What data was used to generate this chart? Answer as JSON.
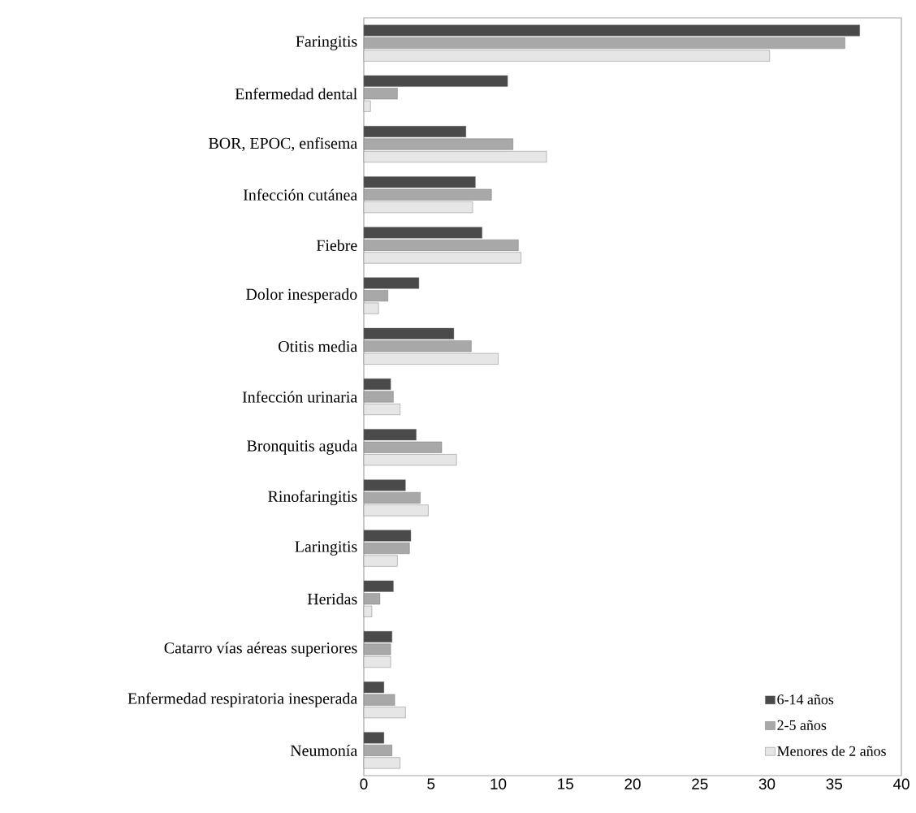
{
  "chart_data": {
    "type": "bar",
    "orientation": "horizontal",
    "categories": [
      "Faringitis",
      "Enfermedad dental",
      "BOR, EPOC, enfisema",
      "Infección cutánea",
      "Fiebre",
      "Dolor inesperado",
      "Otitis media",
      "Infección urinaria",
      "Bronquitis aguda",
      "Rinofaringitis",
      "Laringitis",
      "Heridas",
      "Catarro vías aéreas superiores",
      "Enfermedad respiratoria inesperada",
      "Neumonía"
    ],
    "series": [
      {
        "name": "6-14 años",
        "color": "#4a4a4a",
        "values": [
          36.9,
          10.7,
          7.6,
          8.3,
          8.8,
          4.1,
          6.7,
          2.0,
          3.9,
          3.1,
          3.5,
          2.2,
          2.1,
          1.5,
          1.5
        ]
      },
      {
        "name": "2-5 años",
        "color": "#a8a8a8",
        "values": [
          35.8,
          2.5,
          11.1,
          9.5,
          11.5,
          1.8,
          8.0,
          2.2,
          5.8,
          4.2,
          3.4,
          1.2,
          2.0,
          2.3,
          2.1
        ]
      },
      {
        "name": "Menores de 2 años",
        "color": "#e6e6e6",
        "values": [
          30.2,
          0.5,
          13.6,
          8.1,
          11.7,
          1.1,
          10.0,
          2.7,
          6.9,
          4.8,
          2.5,
          0.6,
          2.0,
          3.1,
          2.7
        ]
      }
    ],
    "xlim": [
      0,
      40
    ],
    "xticks": [
      0,
      5,
      10,
      15,
      20,
      25,
      30,
      35,
      40
    ],
    "legend": "bottom right",
    "grid": false
  }
}
